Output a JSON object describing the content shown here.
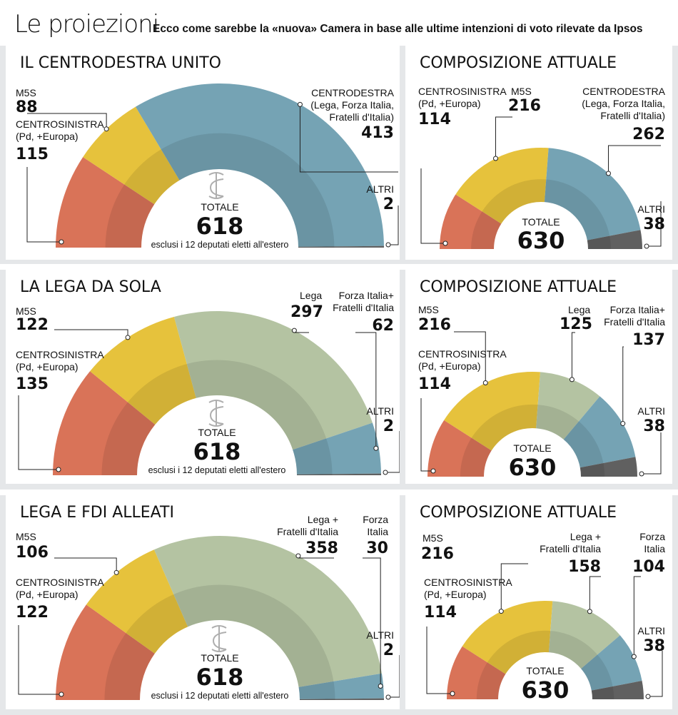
{
  "header": {
    "title": "Le proiezioni",
    "subtitle": "Ecco come sarebbe la «nuova» Camera in base alle ultime intenzioni di voto rilevate da Ipsos"
  },
  "colors": {
    "centrosinistra": "#d97358",
    "m5s": "#e6c23c",
    "centrodestra": "#75a3b4",
    "lega": "#b4c3a2",
    "fi_fdi": "#75a3b4",
    "altri": "#606060"
  },
  "scenario1": {
    "title": "IL CENTRODESTRA UNITO",
    "m5s": {
      "label": "M5S",
      "value": "88"
    },
    "cs": {
      "label1": "CENTROSINISTRA",
      "label2": "(Pd, +Europa)",
      "value": "115"
    },
    "cd": {
      "label1": "CENTRODESTRA",
      "label2": "(Lega, Forza Italia,",
      "label3": "Fratelli d'Italia)",
      "value": "413"
    },
    "altri": {
      "label": "ALTRI",
      "value": "2"
    },
    "total_label": "TOTALE",
    "total": "618",
    "note": "esclusi i 12 deputati eletti all'estero"
  },
  "current1": {
    "title": "COMPOSIZIONE ATTUALE",
    "cs": {
      "label1": "CENTROSINISTRA",
      "label2": "(Pd, +Europa)",
      "value": "114"
    },
    "m5s": {
      "label": "M5S",
      "value": "216"
    },
    "cd": {
      "label1": "CENTRODESTRA",
      "label2": "(Lega, Forza Italia,",
      "label3": "Fratelli d'Italia)",
      "value": "262"
    },
    "altri": {
      "label": "ALTRI",
      "value": "38"
    },
    "total_label": "TOTALE",
    "total": "630"
  },
  "scenario2": {
    "title": "LA LEGA DA SOLA",
    "m5s": {
      "label": "M5S",
      "value": "122"
    },
    "cs": {
      "label1": "CENTROSINISTRA",
      "label2": "(Pd, +Europa)",
      "value": "135"
    },
    "lega": {
      "label": "Lega",
      "value": "297"
    },
    "fifdi": {
      "label1": "Forza Italia+",
      "label2": "Fratelli d'Italia",
      "value": "62"
    },
    "altri": {
      "label": "ALTRI",
      "value": "2"
    },
    "total_label": "TOTALE",
    "total": "618",
    "note": "esclusi i 12 deputati eletti all'estero"
  },
  "current2": {
    "title": "COMPOSIZIONE ATTUALE",
    "m5s": {
      "label": "M5S",
      "value": "216"
    },
    "cs": {
      "label1": "CENTROSINISTRA",
      "label2": "(Pd, +Europa)",
      "value": "114"
    },
    "lega": {
      "label": "Lega",
      "value": "125"
    },
    "fifdi": {
      "label1": "Forza Italia+",
      "label2": "Fratelli d'Italia",
      "value": "137"
    },
    "altri": {
      "label": "ALTRI",
      "value": "38"
    },
    "total_label": "TOTALE",
    "total": "630"
  },
  "scenario3": {
    "title": "LEGA E FDI ALLEATI",
    "m5s": {
      "label": "M5S",
      "value": "106"
    },
    "cs": {
      "label1": "CENTROSINISTRA",
      "label2": "(Pd, +Europa)",
      "value": "122"
    },
    "legafdi": {
      "label1": "Lega +",
      "label2": "Fratelli d'Italia",
      "value": "358"
    },
    "fi": {
      "label1": "Forza",
      "label2": "Italia",
      "value": "30"
    },
    "altri": {
      "label": "ALTRI",
      "value": "2"
    },
    "total_label": "TOTALE",
    "total": "618",
    "note": "esclusi i 12 deputati eletti all'estero"
  },
  "current3": {
    "title": "COMPOSIZIONE ATTUALE",
    "m5s": {
      "label": "M5S",
      "value": "216"
    },
    "cs": {
      "label1": "CENTROSINISTRA",
      "label2": "(Pd, +Europa)",
      "value": "114"
    },
    "legafdi": {
      "label1": "Lega +",
      "label2": "Fratelli d'Italia",
      "value": "158"
    },
    "fi": {
      "label1": "Forza",
      "label2": "Italia",
      "value": "104"
    },
    "altri": {
      "label": "ALTRI",
      "value": "38"
    },
    "total_label": "TOTALE",
    "total": "630"
  },
  "chart_data": [
    {
      "type": "pie",
      "title": "IL CENTRODESTRA UNITO",
      "categories": [
        "CENTROSINISTRA",
        "M5S",
        "CENTRODESTRA",
        "ALTRI"
      ],
      "values": [
        115,
        88,
        413,
        2
      ],
      "total": 618
    },
    {
      "type": "pie",
      "title": "COMPOSIZIONE ATTUALE",
      "categories": [
        "CENTROSINISTRA",
        "M5S",
        "CENTRODESTRA",
        "ALTRI"
      ],
      "values": [
        114,
        216,
        262,
        38
      ],
      "total": 630
    },
    {
      "type": "pie",
      "title": "LA LEGA DA SOLA",
      "categories": [
        "CENTROSINISTRA",
        "M5S",
        "Lega",
        "Forza Italia+ Fratelli d'Italia",
        "ALTRI"
      ],
      "values": [
        135,
        122,
        297,
        62,
        2
      ],
      "total": 618
    },
    {
      "type": "pie",
      "title": "COMPOSIZIONE ATTUALE",
      "categories": [
        "CENTROSINISTRA",
        "M5S",
        "Lega",
        "Forza Italia+ Fratelli d'Italia",
        "ALTRI"
      ],
      "values": [
        114,
        216,
        125,
        137,
        38
      ],
      "total": 630
    },
    {
      "type": "pie",
      "title": "LEGA E FDI ALLEATI",
      "categories": [
        "CENTROSINISTRA",
        "M5S",
        "Lega + Fratelli d'Italia",
        "Forza Italia",
        "ALTRI"
      ],
      "values": [
        122,
        106,
        358,
        30,
        2
      ],
      "total": 618
    },
    {
      "type": "pie",
      "title": "COMPOSIZIONE ATTUALE",
      "categories": [
        "CENTROSINISTRA",
        "M5S",
        "Lega + Fratelli d'Italia",
        "Forza Italia",
        "ALTRI"
      ],
      "values": [
        114,
        216,
        158,
        104,
        38
      ],
      "total": 630
    }
  ]
}
